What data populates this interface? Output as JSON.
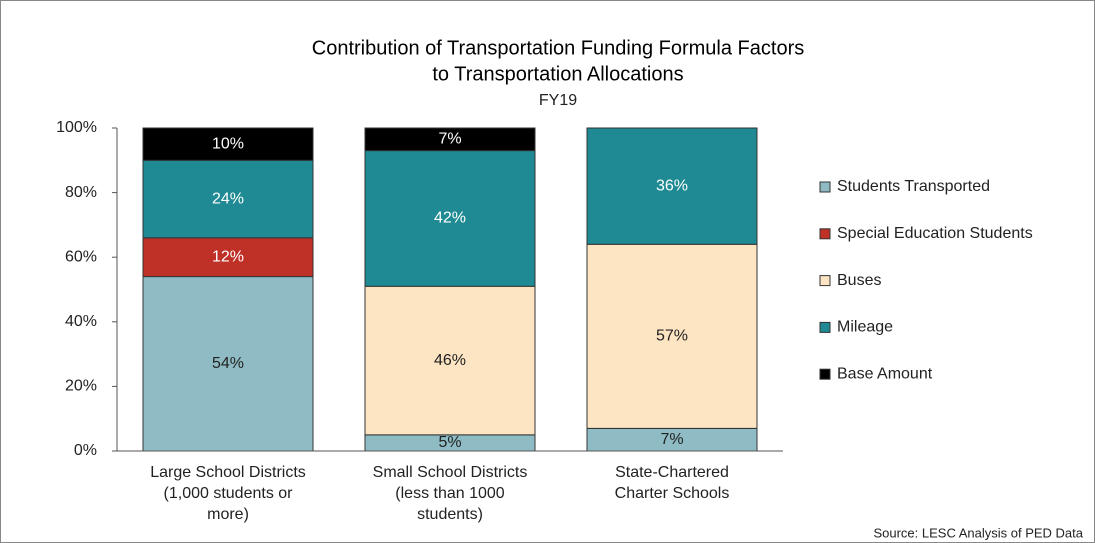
{
  "chart_data": {
    "type": "bar",
    "stacked": true,
    "title": [
      "Contribution of Transportation Funding Formula Factors",
      "to Transportation Allocations"
    ],
    "subtitle": "FY19",
    "source": "Source: LESC Analysis of PED Data",
    "categories": [
      [
        "Large School Districts",
        "(1,000 students or",
        "more)"
      ],
      [
        "Small School Districts",
        "(less than 1000",
        "students)"
      ],
      [
        "State-Chartered",
        "Charter Schools"
      ]
    ],
    "series": [
      {
        "name": "Students Transported",
        "color": "#8fbcc4",
        "values": [
          54,
          5,
          7
        ],
        "value_labels": [
          "54%",
          "5%",
          "7%"
        ]
      },
      {
        "name": "Special Education Students",
        "color": "#bf3027",
        "values": [
          12,
          null,
          null
        ],
        "value_labels": [
          "12%",
          null,
          null
        ]
      },
      {
        "name": "Buses",
        "color": "#fde4c2",
        "values": [
          null,
          46,
          57
        ],
        "value_labels": [
          null,
          "46%",
          "57%"
        ]
      },
      {
        "name": "Mileage",
        "color": "#1f8a93",
        "values": [
          24,
          42,
          36
        ],
        "value_labels": [
          "24%",
          "42%",
          "36%"
        ]
      },
      {
        "name": "Base Amount",
        "color": "#000000",
        "values": [
          10,
          7,
          null
        ],
        "value_labels": [
          "10%",
          "7%",
          null
        ]
      }
    ],
    "ylim": [
      0,
      100
    ],
    "yticks": [
      {
        "value": 0,
        "label": "0%"
      },
      {
        "value": 20,
        "label": "20%"
      },
      {
        "value": 40,
        "label": "40%"
      },
      {
        "value": 60,
        "label": "60%"
      },
      {
        "value": 80,
        "label": "80%"
      },
      {
        "value": 100,
        "label": "100%"
      }
    ],
    "legend": "right"
  }
}
